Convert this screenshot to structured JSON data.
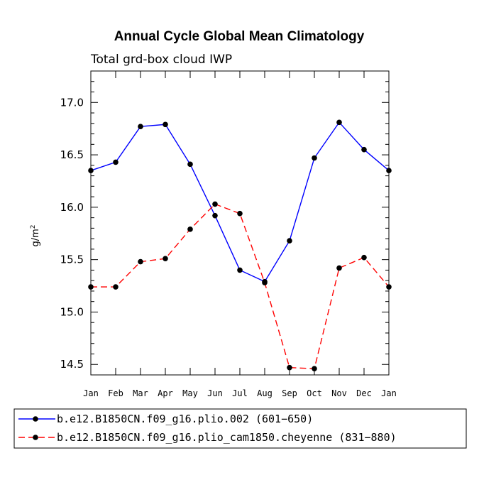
{
  "chart_data": {
    "type": "line",
    "title": "Annual Cycle Global Mean Climatology",
    "subtitle": "Total grd-box cloud IWP",
    "ylabel": "g/m",
    "ylabel_sup": "2",
    "xlabel": "",
    "categories": [
      "Jan",
      "Feb",
      "Mar",
      "Apr",
      "May",
      "Jun",
      "Jul",
      "Aug",
      "Sep",
      "Oct",
      "Nov",
      "Dec",
      "Jan"
    ],
    "ylim": [
      14.4,
      17.3
    ],
    "yticks": [
      "14.5",
      "15.0",
      "15.5",
      "16.0",
      "16.5",
      "17.0"
    ],
    "grid": false,
    "legend_position": "bottom",
    "series": [
      {
        "name": "b.e12.B1850CN.f09_g16.plio.002 (601−650)",
        "color": "#0000ff",
        "style": "solid",
        "values": [
          16.35,
          16.43,
          16.77,
          16.79,
          16.41,
          15.92,
          15.4,
          15.29,
          15.68,
          16.47,
          16.81,
          16.55,
          16.35
        ]
      },
      {
        "name": "b.e12.B1850CN.f09_g16.plio_cam1850.cheyenne (831−880)",
        "color": "#ff0000",
        "style": "dashed",
        "values": [
          15.24,
          15.24,
          15.48,
          15.51,
          15.79,
          16.03,
          15.94,
          15.28,
          14.47,
          14.46,
          15.42,
          15.52,
          15.24
        ]
      }
    ]
  }
}
